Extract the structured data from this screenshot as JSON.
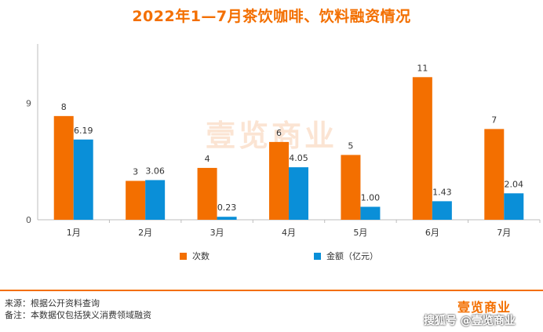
{
  "page": {
    "title": "2022年1—7月茶饮咖啡、饮料融资情况",
    "watermark": "壹览商业",
    "notes": {
      "source": "来源：根据公开资料查询",
      "remark": "备注：本数据仅包括狭义消费领域融资"
    },
    "logo": "壹览商业",
    "source_mark": "搜狐号 @壹览商业"
  },
  "colors": {
    "orange": "#f36f00",
    "blue": "#0a8fd8",
    "axis": "#bdbdbd"
  },
  "chart_data": {
    "type": "bar",
    "title": "2022年1—7月茶饮咖啡、饮料融资情况",
    "categories": [
      "1月",
      "2月",
      "3月",
      "4月",
      "5月",
      "6月",
      "7月"
    ],
    "series": [
      {
        "name": "次数",
        "color": "#f36f00",
        "values": [
          8,
          3,
          4,
          6,
          5,
          11,
          7
        ],
        "labels": [
          "8",
          "3",
          "4",
          "6",
          "5",
          "11",
          "7"
        ]
      },
      {
        "name": "金额（亿元）",
        "color": "#0a8fd8",
        "values": [
          6.19,
          3.06,
          0.23,
          4.05,
          1.0,
          1.43,
          2.04
        ],
        "labels": [
          "6.19",
          "3.06",
          "0.23",
          "4.05",
          "1.00",
          "1.43",
          "2.04"
        ]
      }
    ],
    "y_ticks": [
      "0",
      "9"
    ],
    "ylim": [
      0,
      13.5
    ],
    "legend_position": "bottom",
    "grid": false,
    "xlabel": "",
    "ylabel": ""
  }
}
